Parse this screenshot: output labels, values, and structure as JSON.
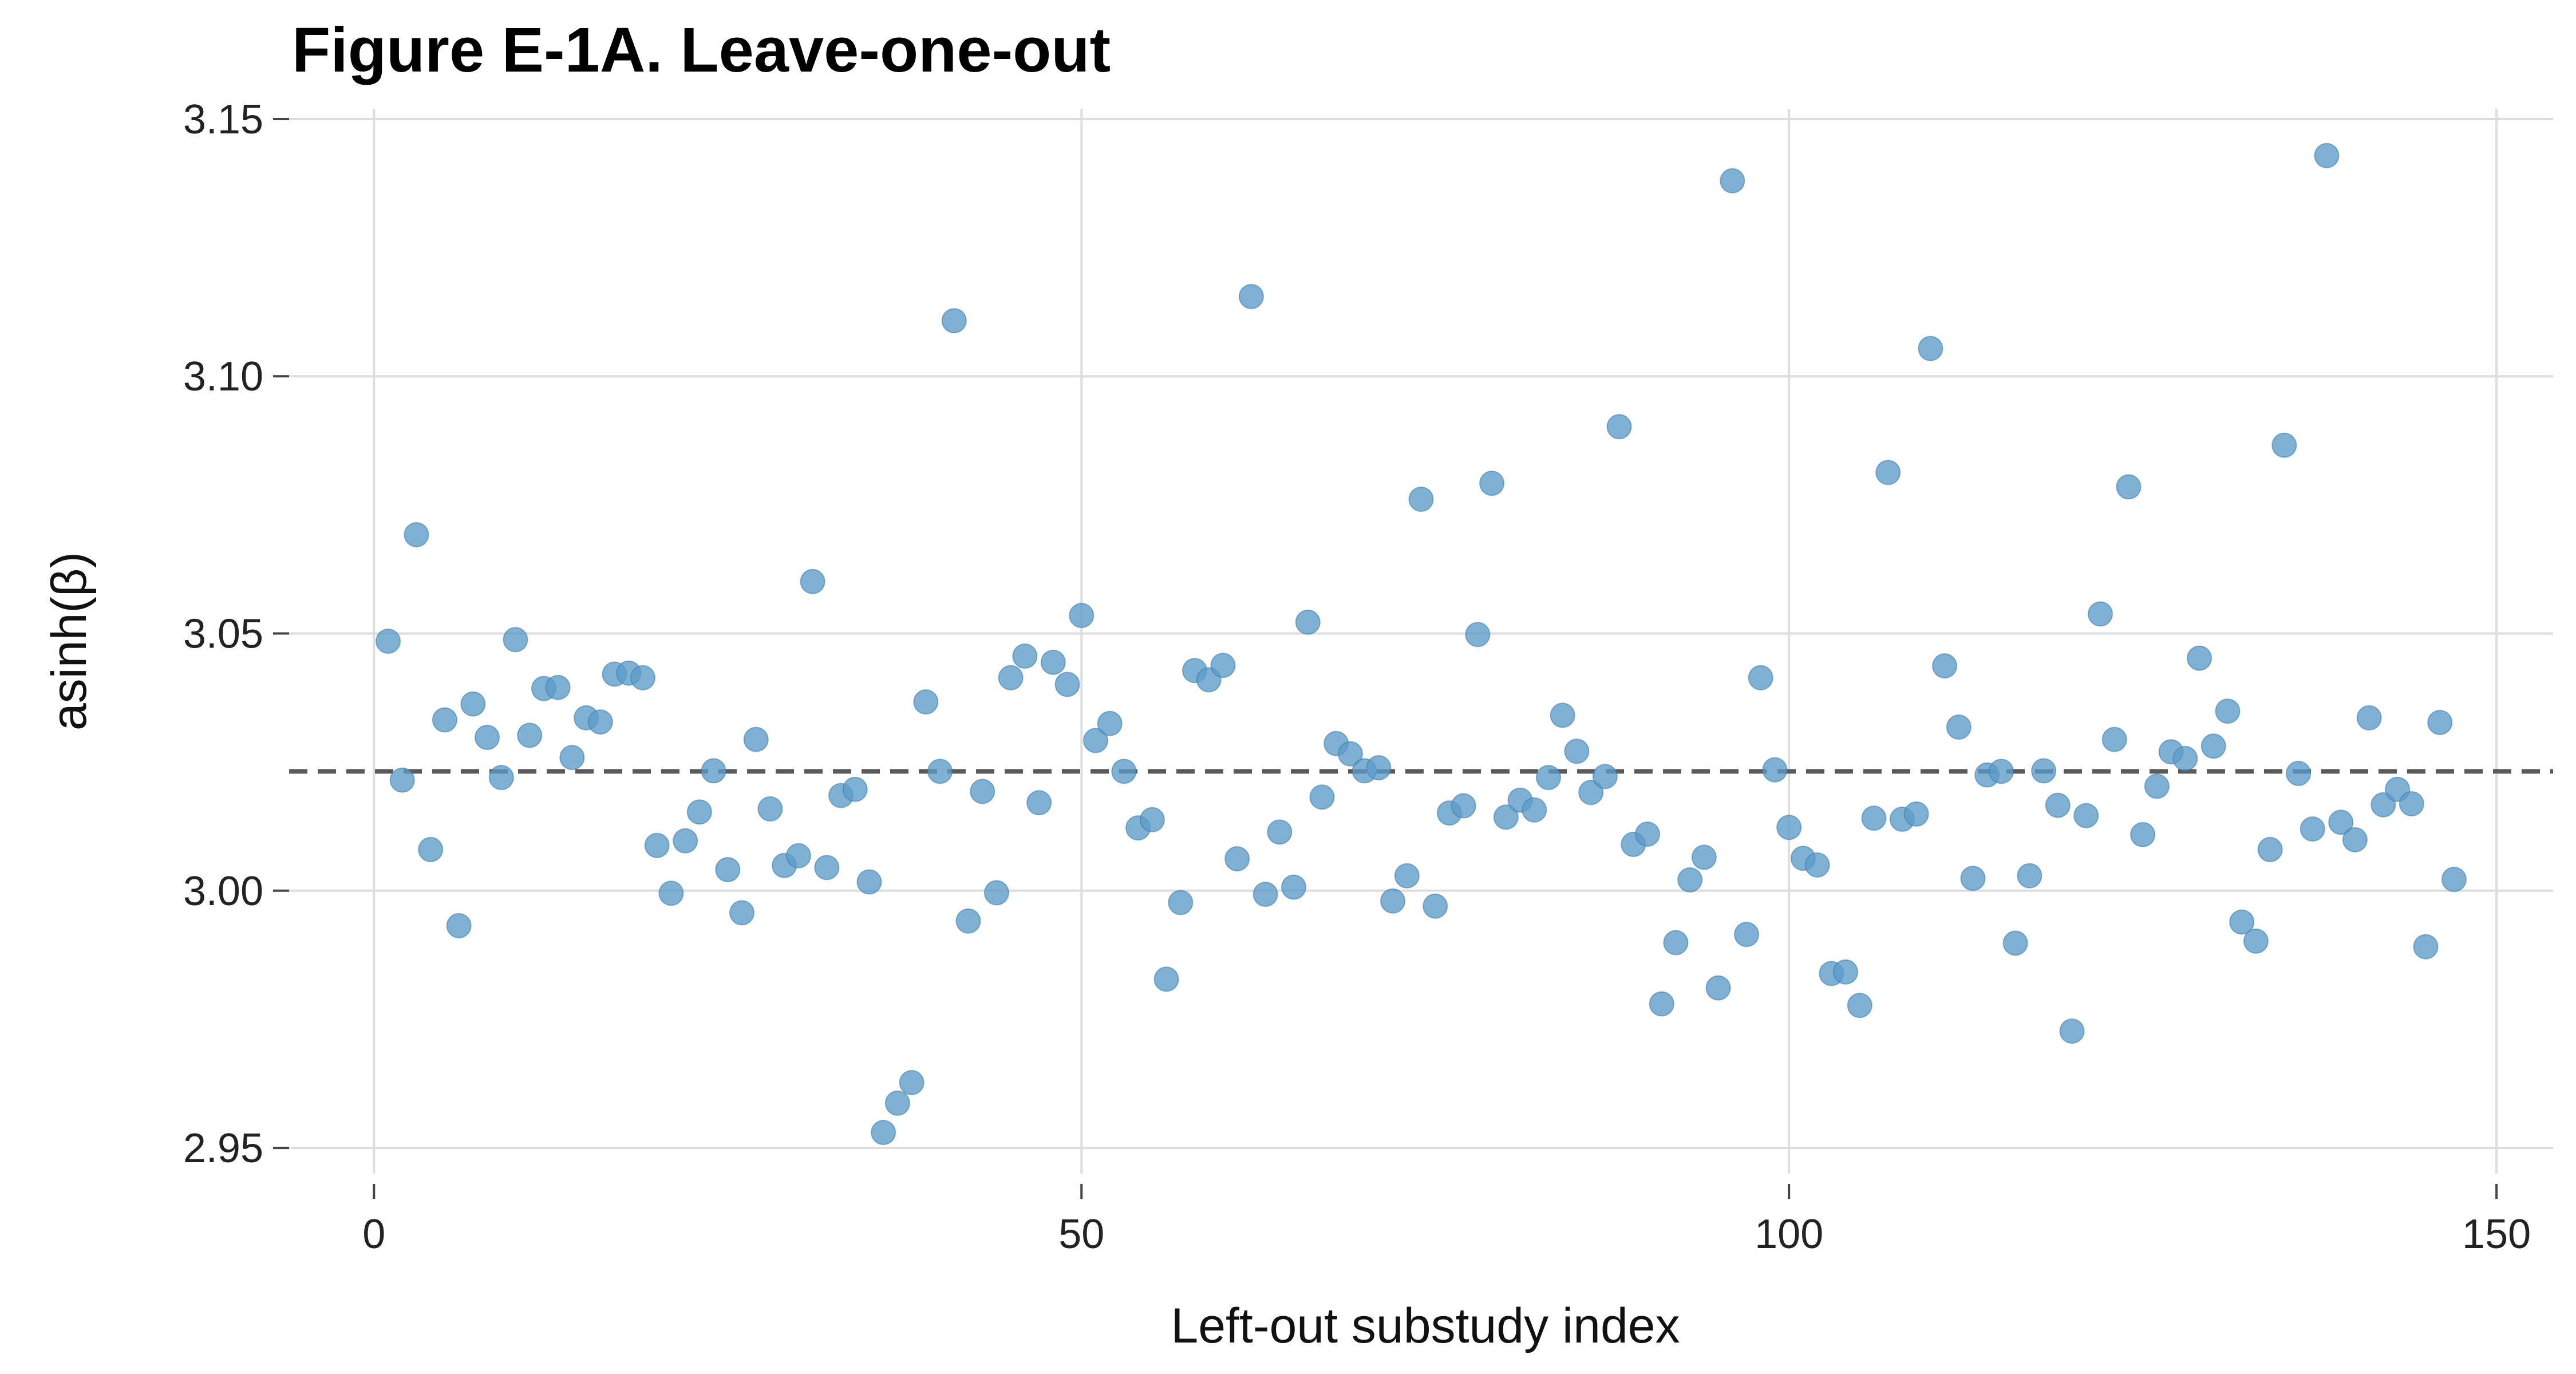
{
  "chart_data": {
    "type": "scatter",
    "title": "Figure E-1A. Leave-one-out",
    "xlabel": "Left-out substudy index",
    "ylabel": "asinh(β)",
    "xlim": [
      -6,
      154
    ],
    "ylim": [
      2.945,
      3.152
    ],
    "xticks": [
      0,
      50,
      100,
      150
    ],
    "xtick_labels": [
      "0",
      "50",
      "100",
      "150"
    ],
    "yticks": [
      2.95,
      3.0,
      3.05,
      3.1,
      3.15
    ],
    "ytick_labels": [
      "2.95",
      "3.00",
      "3.05",
      "3.10",
      "3.15"
    ],
    "grid": true,
    "reference_line": {
      "y": 3.0232,
      "style": "dashed",
      "color": "#5a5a5a"
    },
    "marker_color": "#5b9bc8",
    "series": [
      {
        "x": [
          1,
          2,
          3,
          4,
          5,
          6,
          7,
          8,
          9,
          10,
          11,
          12,
          13,
          14,
          15,
          16,
          17,
          18,
          19,
          20,
          21,
          22,
          23,
          24,
          25,
          26,
          27,
          28,
          29,
          30,
          31,
          32,
          33,
          34,
          35,
          36,
          37,
          38,
          39,
          40,
          41,
          42,
          43,
          44,
          45,
          46,
          47,
          48,
          49,
          50,
          51,
          52,
          53,
          54,
          55,
          56,
          57,
          58,
          59,
          60,
          61,
          62,
          63,
          64,
          65,
          66,
          67,
          68,
          69,
          70,
          71,
          72,
          73,
          74,
          75,
          76,
          77,
          78,
          79,
          80,
          81,
          82,
          83,
          84,
          85,
          86,
          87,
          88,
          89,
          90,
          91,
          92,
          93,
          94,
          95,
          96,
          97,
          98,
          99,
          100,
          101,
          102,
          103,
          104,
          105,
          106,
          107,
          108,
          109,
          110,
          111,
          112,
          113,
          114,
          115,
          116,
          117,
          118,
          119,
          120,
          121,
          122,
          123,
          124,
          125,
          126,
          127,
          128,
          129,
          130,
          131,
          132,
          133,
          134,
          135,
          136,
          137,
          138,
          139,
          140,
          141,
          142,
          143,
          144,
          145,
          146,
          147
        ],
        "y": [
          3.0485,
          3.0215,
          3.0692,
          3.008,
          3.0332,
          2.9932,
          3.0363,
          3.0298,
          3.022,
          3.0488,
          3.0302,
          3.0393,
          3.0395,
          3.0259,
          3.0336,
          3.0328,
          3.0421,
          3.0423,
          3.0414,
          3.0088,
          2.9995,
          3.0097,
          3.0153,
          3.0233,
          3.0041,
          2.9957,
          3.0294,
          3.0159,
          3.0049,
          3.0068,
          3.0601,
          3.0045,
          3.0185,
          3.0197,
          3.0017,
          2.953,
          2.9587,
          2.9627,
          3.0367,
          3.0232,
          3.1108,
          2.9941,
          3.0193,
          2.9996,
          3.0414,
          3.0456,
          3.0171,
          3.0444,
          3.0401,
          3.0535,
          3.0292,
          3.0325,
          3.0232,
          3.0122,
          3.0138,
          2.9828,
          2.9977,
          3.0428,
          3.041,
          3.0438,
          3.0062,
          3.1155,
          2.9993,
          3.0114,
          3.0007,
          3.0522,
          3.0182,
          3.0286,
          3.0266,
          3.0233,
          3.0239,
          2.998,
          3.0029,
          3.0761,
          2.997,
          3.0151,
          3.0165,
          3.0498,
          3.0792,
          3.0143,
          3.0176,
          3.0157,
          3.022,
          3.0341,
          3.0271,
          3.0191,
          3.0222,
          3.0902,
          3.009,
          3.011,
          2.978,
          2.9899,
          3.0021,
          3.0065,
          2.9811,
          3.138,
          2.9915,
          3.0414,
          3.0235,
          3.0123,
          3.0063,
          3.005,
          2.9839,
          2.9842,
          2.9777,
          3.0141,
          3.0813,
          3.0139,
          3.0149,
          3.1054,
          3.0437,
          3.0318,
          3.0024,
          3.0225,
          3.0232,
          2.9898,
          3.0029,
          3.0233,
          3.0166,
          2.9727,
          3.0146,
          3.0538,
          3.0294,
          3.0785,
          3.0109,
          3.0203,
          3.027,
          3.0257,
          3.0452,
          3.0281,
          3.0349,
          2.9939,
          2.9902,
          3.008,
          3.0866,
          3.0228,
          3.012,
          3.1429,
          3.0133,
          3.0099,
          3.0336,
          3.0167,
          3.0197,
          3.0169,
          2.9891,
          3.0327,
          3.0022
        ]
      }
    ]
  }
}
